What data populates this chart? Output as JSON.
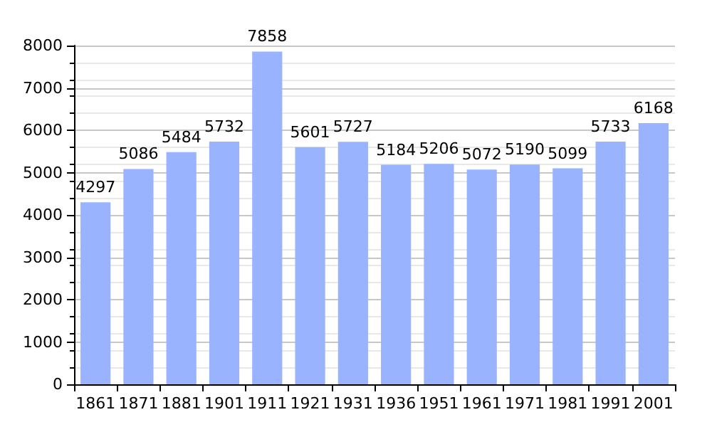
{
  "chart_data": {
    "type": "bar",
    "categories": [
      "1861",
      "1871",
      "1881",
      "1901",
      "1911",
      "1921",
      "1931",
      "1936",
      "1951",
      "1961",
      "1971",
      "1981",
      "1991",
      "2001"
    ],
    "values": [
      4297,
      5086,
      5484,
      5732,
      7858,
      5601,
      5727,
      5184,
      5206,
      5072,
      5190,
      5099,
      5733,
      6168
    ],
    "color": "#99b3ff",
    "ylim": [
      0,
      8000
    ],
    "yticks": [
      0,
      1000,
      2000,
      3000,
      4000,
      5000,
      6000,
      7000,
      8000
    ],
    "grid": "y",
    "data_labels": true
  }
}
